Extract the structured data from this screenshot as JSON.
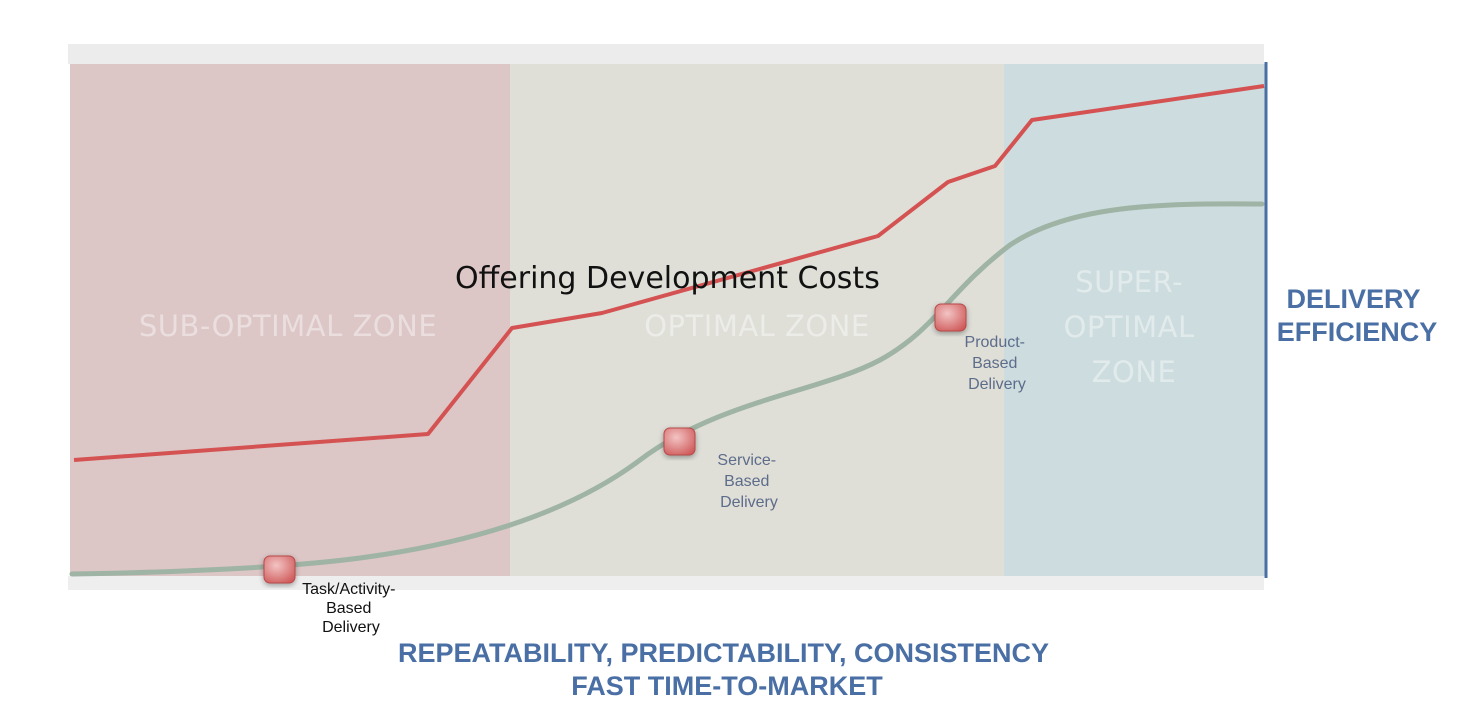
{
  "zones": [
    {
      "label_lines": [
        "SUB-OPTIMAL ZONE"
      ],
      "color": "#dcc6c6"
    },
    {
      "label_lines": [
        "OPTIMAL ZONE"
      ],
      "color": "#dfdfd8"
    },
    {
      "label_lines": [
        "SUPER-",
        "OPTIMAL",
        "ZONE"
      ],
      "color": "#cddcdf"
    }
  ],
  "curves": {
    "cost": {
      "label": "Offering Development Costs",
      "color": "#d55252"
    },
    "efficiency": {
      "color": "#9fb4a4"
    }
  },
  "milestones": [
    {
      "label_lines": [
        "Task/Activity-",
        "Based",
        "Delivery"
      ],
      "text_color": "#111111"
    },
    {
      "label_lines": [
        "Service-",
        "Based",
        "Delivery"
      ],
      "text_color": "#5d6c8a"
    },
    {
      "label_lines": [
        "Product-",
        "Based",
        "Delivery"
      ],
      "text_color": "#5d6c8a"
    }
  ],
  "axes": {
    "y_title_lines": [
      "DELIVERY",
      "EFFICIENCY"
    ],
    "x_title_lines": [
      "REPEATABILITY, PREDICTABILITY, CONSISTENCY",
      "FAST TIME-TO-MARKET"
    ],
    "color": "#4a6fa5"
  },
  "colors": {
    "marker": "#d86a6a",
    "axis_line": "#4a6fa5"
  }
}
